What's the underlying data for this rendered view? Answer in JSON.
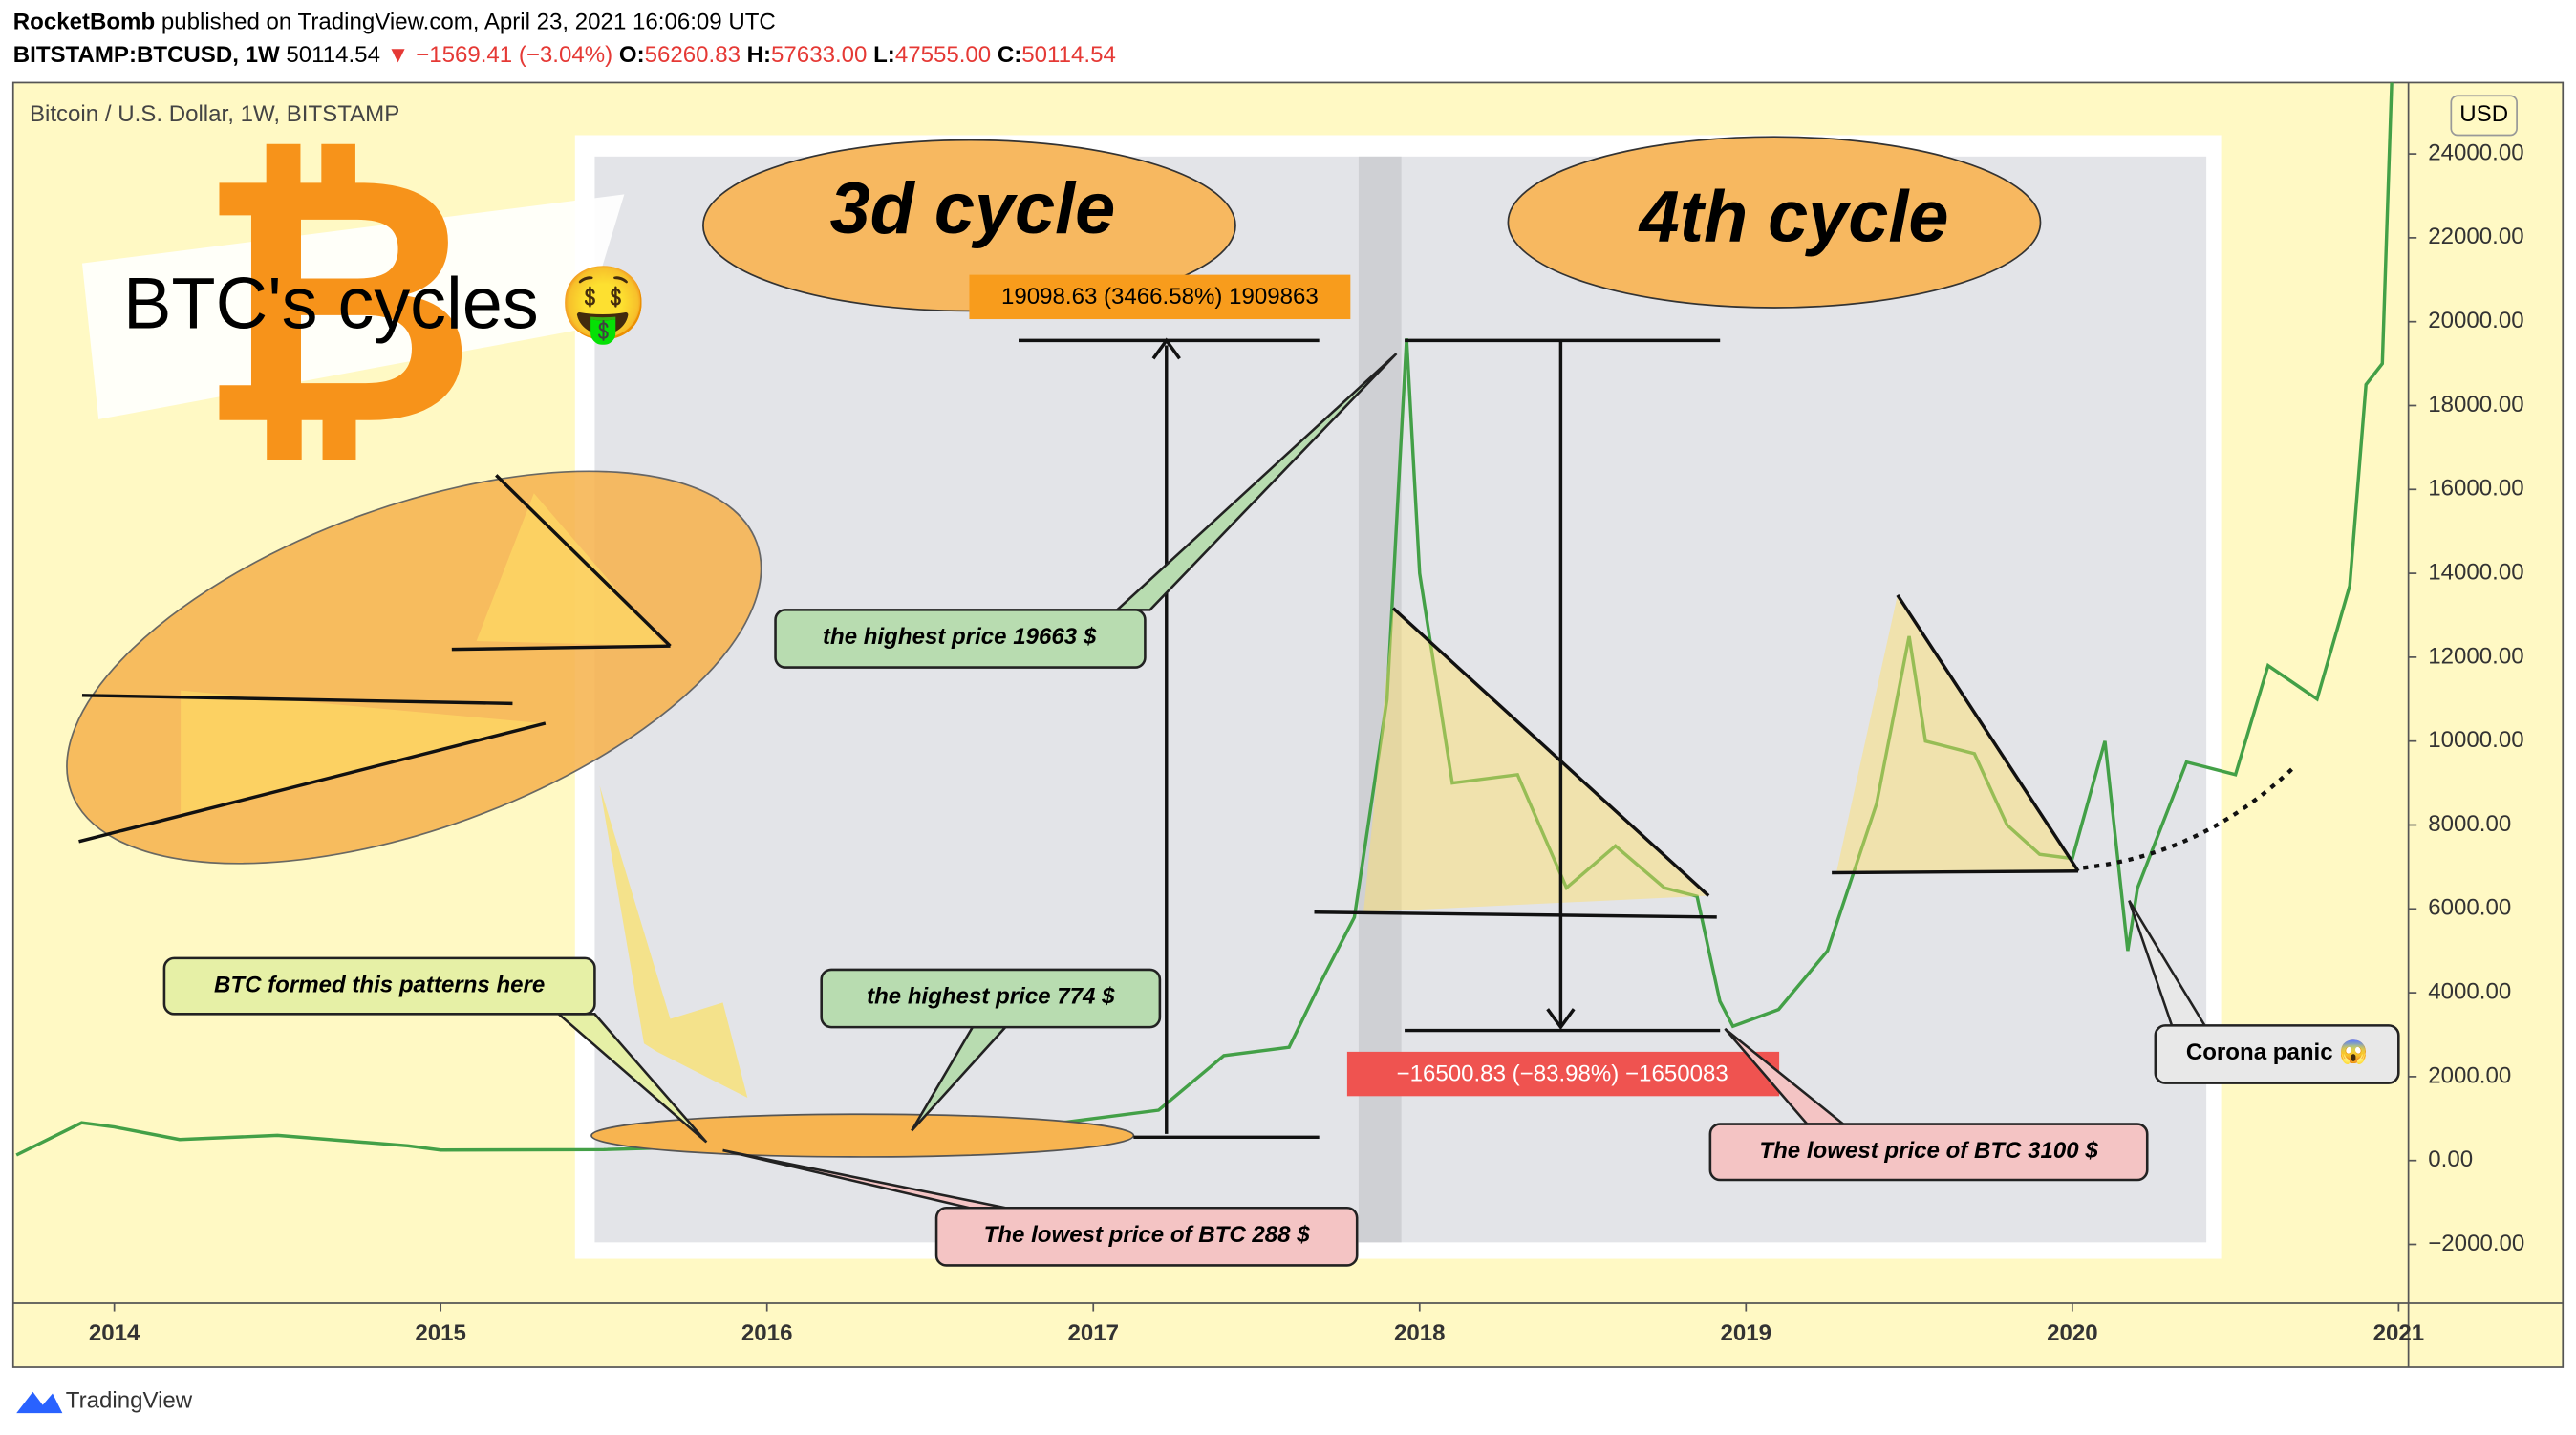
{
  "header": {
    "author": "RocketBomb",
    "published": "published on TradingView.com, April 23, 2021 16:06:09 UTC",
    "symbol": "BITSTAMP:BTCUSD, 1W",
    "last": "50114.54",
    "change": "▼ −1569.41 (−3.04%)",
    "o_label": "O:",
    "o": "56260.83",
    "h_label": "H:",
    "h": "57633.00",
    "l_label": "L:",
    "l": "47555.00",
    "c_label": "C:",
    "c": "50114.54"
  },
  "chart_data": {
    "type": "line",
    "title": "Bitcoin / U.S. Dollar, 1W, BITSTAMP",
    "y_axis_label": "USD",
    "x": [
      2013.7,
      2013.9,
      2014.0,
      2014.2,
      2014.5,
      2014.9,
      2015.0,
      2015.5,
      2015.9,
      2016.0,
      2016.5,
      2016.9,
      2017.0,
      2017.2,
      2017.4,
      2017.6,
      2017.7,
      2017.8,
      2017.9,
      2017.96,
      2018.0,
      2018.1,
      2018.3,
      2018.45,
      2018.6,
      2018.75,
      2018.85,
      2018.92,
      2018.96,
      2019.1,
      2019.25,
      2019.4,
      2019.5,
      2019.55,
      2019.7,
      2019.8,
      2019.9,
      2020.0,
      2020.1,
      2020.17,
      2020.2,
      2020.35,
      2020.5,
      2020.6,
      2020.75,
      2020.85,
      2020.9,
      2020.95,
      2020.98
    ],
    "values": [
      130,
      900,
      800,
      500,
      600,
      350,
      250,
      260,
      350,
      430,
      650,
      900,
      1000,
      1200,
      2500,
      2700,
      4300,
      5800,
      11000,
      19600,
      14000,
      9000,
      9200,
      6500,
      7500,
      6500,
      6300,
      3800,
      3200,
      3600,
      5000,
      8500,
      12500,
      10000,
      9700,
      8000,
      7300,
      7200,
      10000,
      5000,
      6500,
      9500,
      9200,
      11800,
      11000,
      13700,
      18500,
      19000,
      26000
    ],
    "color": "#43a047",
    "xlim": [
      2013.69,
      2021.03
    ],
    "xticks": [
      2014,
      2015,
      2016,
      2017,
      2018,
      2019,
      2020,
      2021
    ],
    "ylim": [
      -3400,
      25700
    ],
    "yticks": [
      {
        "value": -2000,
        "label": "−2000.00"
      },
      {
        "value": 0,
        "label": "0.00"
      },
      {
        "value": 2000,
        "label": "2000.00"
      },
      {
        "value": 4000,
        "label": "4000.00"
      },
      {
        "value": 6000,
        "label": "6000.00"
      },
      {
        "value": 8000,
        "label": "8000.00"
      },
      {
        "value": 10000,
        "label": "10000.00"
      },
      {
        "value": 12000,
        "label": "12000.00"
      },
      {
        "value": 14000,
        "label": "14000.00"
      },
      {
        "value": 16000,
        "label": "16000.00"
      },
      {
        "value": 18000,
        "label": "18000.00"
      },
      {
        "value": 20000,
        "label": "20000.00"
      },
      {
        "value": 22000,
        "label": "22000.00"
      },
      {
        "value": 24000,
        "label": "24000.00"
      }
    ],
    "annotations": [
      "3d cycle",
      "4th cycle",
      "BTC's cycles 🤑",
      "19098.63 (3466.58%) 1909863",
      "−16500.83 (−83.98%) −1650083",
      "the highest price 19663 $",
      "the highest price 774 $",
      "BTC formed this patterns here",
      "The lowest price of BTC 288 $",
      "The lowest price of BTC 3100 $",
      "Corona panic 😱"
    ]
  },
  "footer": {
    "brand": "TradingView"
  }
}
